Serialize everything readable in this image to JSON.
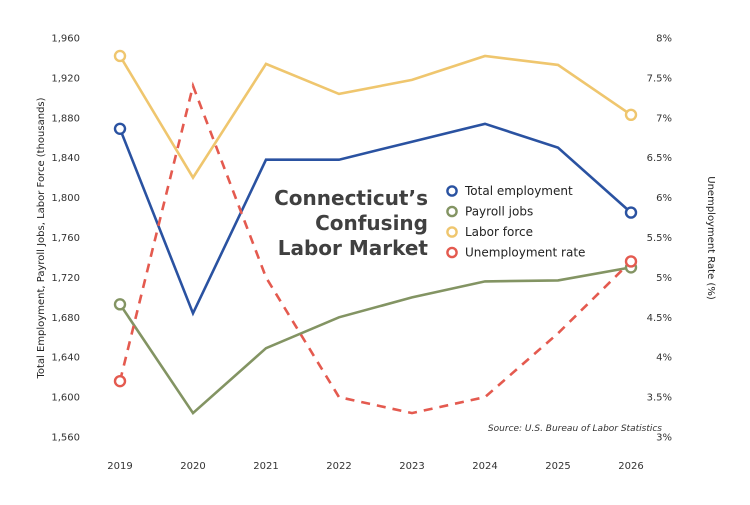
{
  "chart_data": {
    "type": "line",
    "title_lines": [
      "Connecticut’s",
      "Confusing",
      "Labor Market"
    ],
    "source": "Source: U.S. Bureau of Labor Statistics",
    "categories": [
      "2019",
      "2020",
      "2021",
      "2022",
      "2023",
      "2024",
      "2025",
      "2026"
    ],
    "y_left": {
      "label": "Total Employment, Payroll Jobs, Labor Force (thousands)",
      "range": [
        1560,
        1960
      ],
      "ticks": [
        "1,560",
        "1,600",
        "1,640",
        "1,680",
        "1,720",
        "1,760",
        "1,800",
        "1,840",
        "1,880",
        "1,920",
        "1,960"
      ]
    },
    "y_right": {
      "label": "Unemployment Rate (%)",
      "range": [
        3,
        8
      ],
      "ticks": [
        "3%",
        "3.5%",
        "4%",
        "4.5%",
        "5%",
        "5.5%",
        "6%",
        "6.5%",
        "7%",
        "7.5%",
        "8%"
      ]
    },
    "series": [
      {
        "name": "Total employment",
        "axis": "left",
        "color": "#2a52a1",
        "dashed": false,
        "values": [
          1869,
          1684,
          1838,
          1838,
          1856,
          1874,
          1850,
          1785
        ]
      },
      {
        "name": "Payroll jobs",
        "axis": "left",
        "color": "#839463",
        "dashed": false,
        "values": [
          1693,
          1584,
          1649,
          1680,
          1700,
          1716,
          1717,
          1730
        ]
      },
      {
        "name": "Labor force",
        "axis": "left",
        "color": "#efc66e",
        "dashed": false,
        "values": [
          1942,
          1820,
          1934,
          1904,
          1918,
          1942,
          1933,
          1883
        ]
      },
      {
        "name": "Unemployment rate",
        "axis": "right",
        "color": "#e45a4f",
        "dashed": true,
        "values": [
          3.7,
          7.4,
          5.0,
          3.5,
          3.3,
          3.5,
          4.3,
          5.2
        ]
      }
    ],
    "markers": "first-and-last points",
    "legend_position": "center-right",
    "grid": false
  }
}
